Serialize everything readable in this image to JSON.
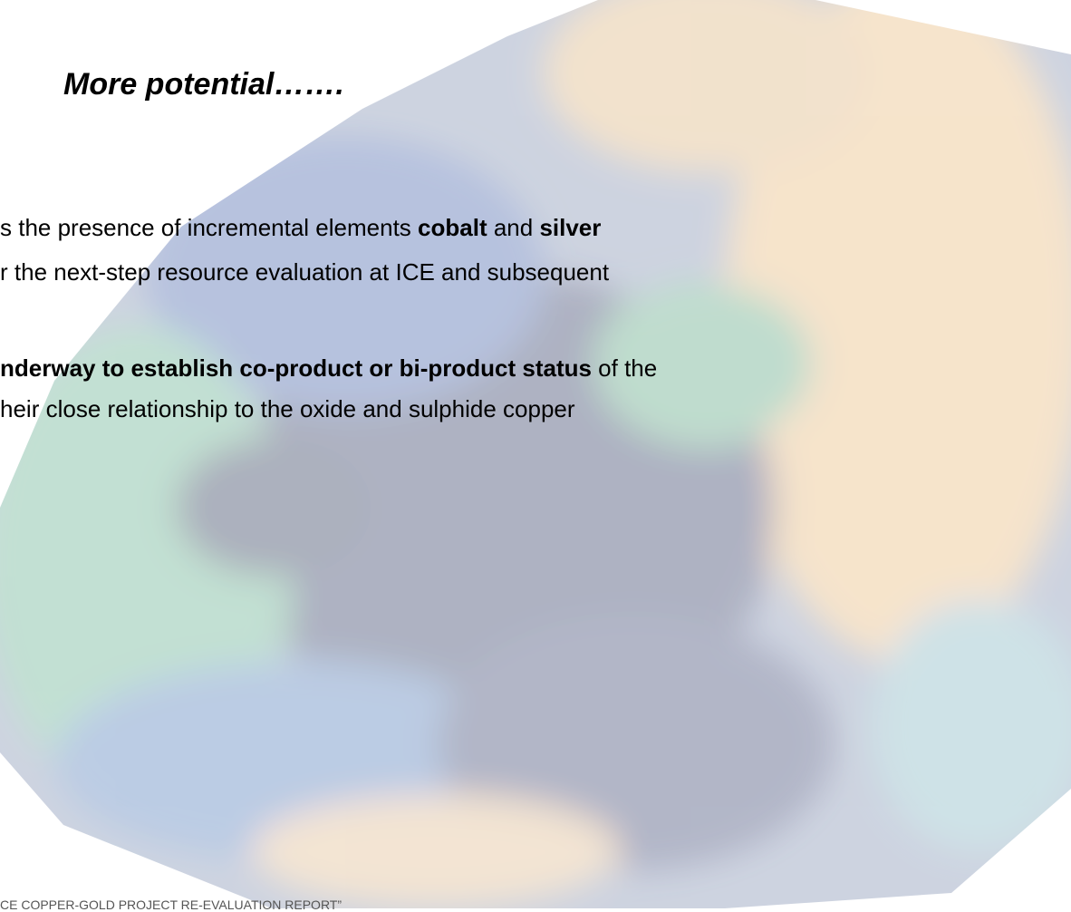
{
  "title": "More potential…….",
  "lines": [
    [
      {
        "text": "s the presence of incremental elements ",
        "bold": false
      },
      {
        "text": "cobalt",
        "bold": true
      },
      {
        "text": " and ",
        "bold": false
      },
      {
        "text": "silver",
        "bold": true
      }
    ],
    [
      {
        "text": "r the next-step resource evaluation at ICE and subsequent",
        "bold": false
      }
    ],
    [
      {
        "text": "nderway to establish co-product or bi-product status",
        "bold": true
      },
      {
        "text": " of the",
        "bold": false
      }
    ],
    [
      {
        "text": "heir close relationship to the oxide and sulphide copper",
        "bold": false
      }
    ]
  ],
  "footer": "CE COPPER-GOLD PROJECT RE-EVALUATION REPORT”"
}
